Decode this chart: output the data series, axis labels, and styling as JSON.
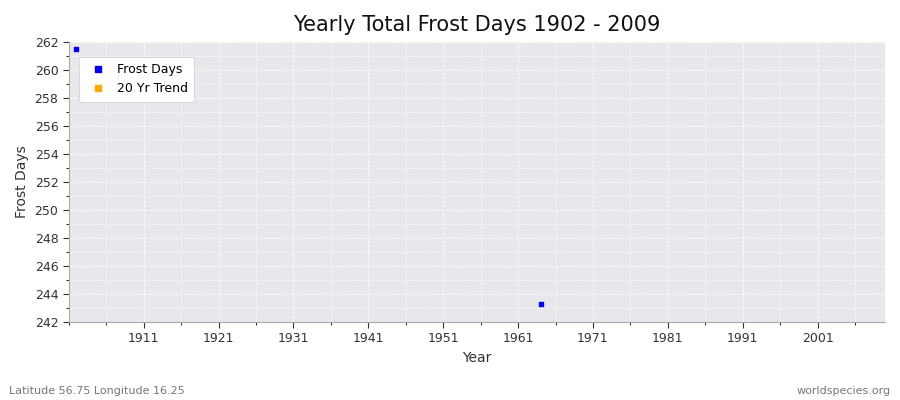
{
  "title": "Yearly Total Frost Days 1902 - 2009",
  "xlabel": "Year",
  "ylabel": "Frost Days",
  "xlim": [
    1901,
    2010
  ],
  "ylim": [
    242,
    262
  ],
  "yticks": [
    242,
    244,
    246,
    248,
    250,
    252,
    254,
    256,
    258,
    260,
    262
  ],
  "xticks": [
    1911,
    1921,
    1931,
    1941,
    1951,
    1961,
    1971,
    1981,
    1991,
    2001
  ],
  "data_points": [
    [
      1902,
      261.5
    ],
    [
      1964,
      243.3
    ]
  ],
  "data_color": "#0000ee",
  "trend_color": "#ffaa00",
  "background_color": "#ffffff",
  "plot_bg_color": "#e8e8ec",
  "grid_color": "#ffffff",
  "legend_labels": [
    "Frost Days",
    "20 Yr Trend"
  ],
  "legend_colors": [
    "#0000ee",
    "#ffaa00"
  ],
  "footer_left": "Latitude 56.75 Longitude 16.25",
  "footer_right": "worldspecies.org",
  "title_fontsize": 15,
  "axis_fontsize": 10,
  "tick_fontsize": 9,
  "marker_size": 3
}
